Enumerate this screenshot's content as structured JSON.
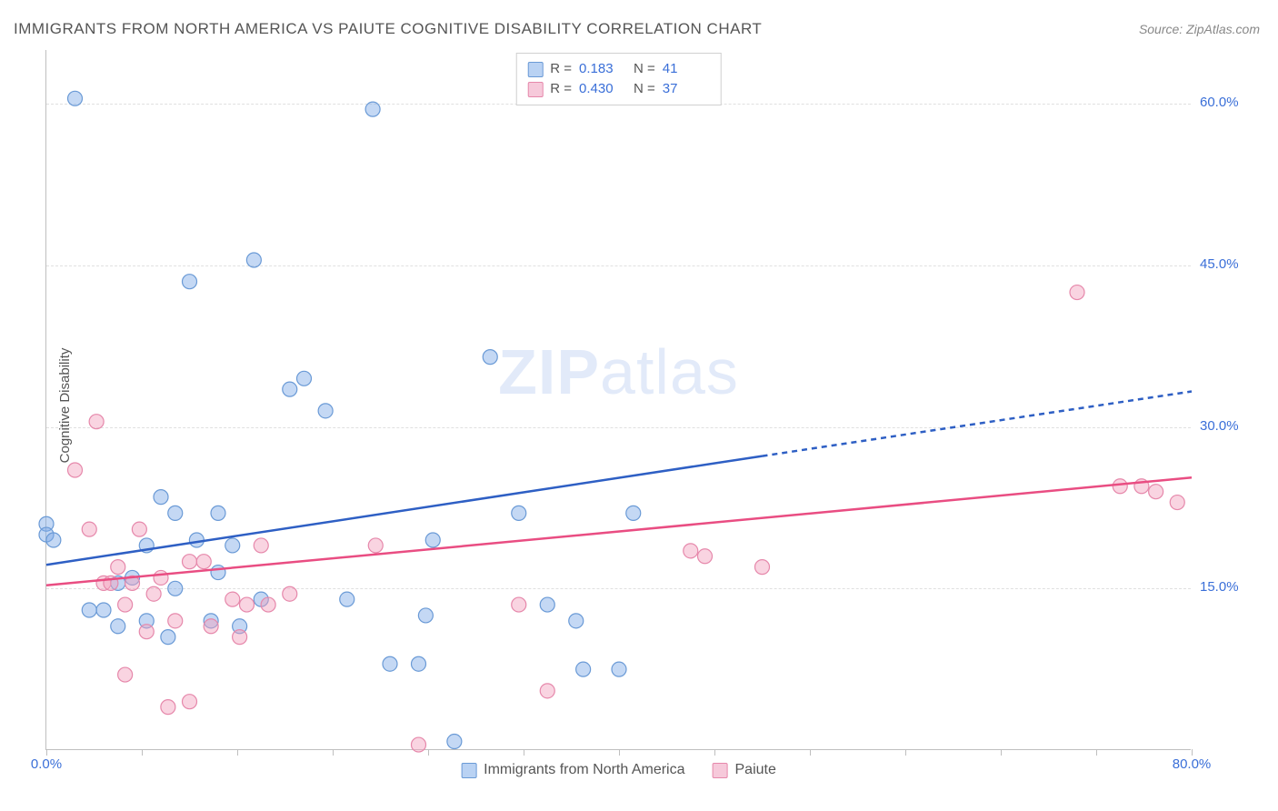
{
  "title": "IMMIGRANTS FROM NORTH AMERICA VS PAIUTE COGNITIVE DISABILITY CORRELATION CHART",
  "source_label": "Source: ",
  "source_name": "ZipAtlas.com",
  "ylabel": "Cognitive Disability",
  "watermark_bold": "ZIP",
  "watermark_rest": "atlas",
  "chart": {
    "type": "scatter",
    "xlim": [
      0,
      80
    ],
    "ylim": [
      0,
      65
    ],
    "yticks": [
      15,
      30,
      45,
      60
    ],
    "ytick_labels": [
      "15.0%",
      "30.0%",
      "45.0%",
      "60.0%"
    ],
    "xticks": [
      0,
      20,
      40,
      60,
      80
    ],
    "xtick_labels": [
      "0.0%",
      "",
      "",
      "",
      "80.0%"
    ],
    "xtick_minor": [
      0,
      6.67,
      13.33,
      20,
      26.67,
      33.33,
      40,
      46.67,
      53.33,
      60,
      66.67,
      73.33,
      80
    ],
    "grid_color": "#e0e0e0",
    "background_color": "#ffffff",
    "axis_color": "#bfbfbf",
    "label_color": "#3a6fd8",
    "marker_radius": 8,
    "marker_stroke_width": 1.2,
    "trend_line_width": 2.5,
    "trend_dash": "6,5"
  },
  "series": [
    {
      "id": "immigrants",
      "label": "Immigrants from North America",
      "R": "0.183",
      "N": "41",
      "fill": "rgba(124,169,230,0.45)",
      "stroke": "#6a9ad6",
      "swatch_fill": "#b9d2f3",
      "swatch_stroke": "#6a9ad6",
      "trend_color": "#2e5fc4",
      "trend": {
        "x1": 0,
        "y1": 17.2,
        "x2_solid": 50,
        "y2_solid": 27.3,
        "x2": 80,
        "y2": 33.3
      },
      "points": [
        [
          0,
          21
        ],
        [
          0,
          20
        ],
        [
          0.5,
          19.5
        ],
        [
          2,
          60.5
        ],
        [
          3,
          13
        ],
        [
          4,
          13
        ],
        [
          5,
          15.5
        ],
        [
          5,
          11.5
        ],
        [
          6,
          16
        ],
        [
          7,
          12
        ],
        [
          7,
          19
        ],
        [
          8,
          23.5
        ],
        [
          8.5,
          10.5
        ],
        [
          9,
          22
        ],
        [
          9,
          15
        ],
        [
          10,
          43.5
        ],
        [
          10.5,
          19.5
        ],
        [
          11.5,
          12
        ],
        [
          12,
          22
        ],
        [
          12,
          16.5
        ],
        [
          13,
          19
        ],
        [
          13.5,
          11.5
        ],
        [
          14.5,
          45.5
        ],
        [
          15,
          14
        ],
        [
          17,
          33.5
        ],
        [
          18,
          34.5
        ],
        [
          19.5,
          31.5
        ],
        [
          21,
          14
        ],
        [
          22.8,
          59.5
        ],
        [
          24,
          8
        ],
        [
          26,
          8
        ],
        [
          27,
          19.5
        ],
        [
          26.5,
          12.5
        ],
        [
          28.5,
          0.8
        ],
        [
          31,
          36.5
        ],
        [
          33,
          22
        ],
        [
          35,
          13.5
        ],
        [
          40,
          7.5
        ],
        [
          37.5,
          7.5
        ],
        [
          37,
          12
        ],
        [
          41,
          22
        ]
      ]
    },
    {
      "id": "paiute",
      "label": "Paiute",
      "R": "0.430",
      "N": "37",
      "fill": "rgba(241,160,188,0.45)",
      "stroke": "#e688ab",
      "swatch_fill": "#f6c9da",
      "swatch_stroke": "#e688ab",
      "trend_color": "#e94d82",
      "trend": {
        "x1": 0,
        "y1": 15.3,
        "x2_solid": 80,
        "y2_solid": 25.3,
        "x2": 80,
        "y2": 25.3
      },
      "points": [
        [
          2,
          26
        ],
        [
          3,
          20.5
        ],
        [
          3.5,
          30.5
        ],
        [
          4,
          15.5
        ],
        [
          4.5,
          15.5
        ],
        [
          5,
          17
        ],
        [
          5.5,
          7
        ],
        [
          5.5,
          13.5
        ],
        [
          6,
          15.5
        ],
        [
          6.5,
          20.5
        ],
        [
          7,
          11
        ],
        [
          7.5,
          14.5
        ],
        [
          8,
          16
        ],
        [
          8.5,
          4
        ],
        [
          9,
          12
        ],
        [
          10,
          17.5
        ],
        [
          10,
          4.5
        ],
        [
          11,
          17.5
        ],
        [
          11.5,
          11.5
        ],
        [
          13,
          14
        ],
        [
          13.5,
          10.5
        ],
        [
          14,
          13.5
        ],
        [
          15,
          19
        ],
        [
          15.5,
          13.5
        ],
        [
          17,
          14.5
        ],
        [
          23,
          19
        ],
        [
          26,
          0.5
        ],
        [
          33,
          13.5
        ],
        [
          35,
          5.5
        ],
        [
          45,
          18.5
        ],
        [
          46,
          18
        ],
        [
          50,
          17
        ],
        [
          72,
          42.5
        ],
        [
          75,
          24.5
        ],
        [
          76.5,
          24.5
        ],
        [
          77.5,
          24
        ],
        [
          79,
          23
        ]
      ]
    }
  ],
  "legend_bottom": {
    "items": [
      {
        "series": 0
      },
      {
        "series": 1
      }
    ]
  },
  "legend_top_labels": {
    "R": "R =",
    "N": "N ="
  }
}
